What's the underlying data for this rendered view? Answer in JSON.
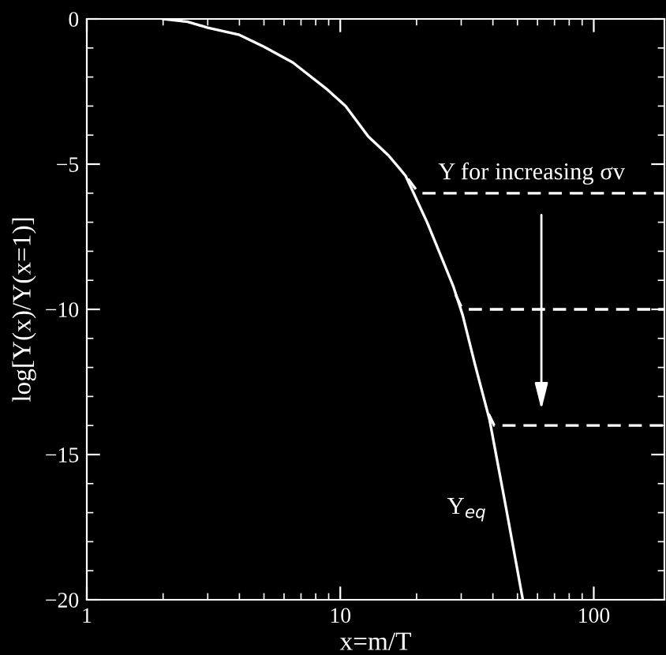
{
  "chart_data": {
    "type": "line",
    "xlabel": "x=m/T",
    "ylabel": "log[Y(x)/Y(x=1)]",
    "log": "x",
    "xlim": [
      1,
      190
    ],
    "ylim": [
      -20,
      0
    ],
    "xticks": [
      1,
      10,
      100
    ],
    "yticks": [
      {
        "value": -20,
        "label": "−20"
      },
      {
        "value": -15,
        "label": "−15"
      },
      {
        "value": -10,
        "label": "−10"
      },
      {
        "value": -5,
        "label": "−5"
      },
      0
    ],
    "grid": false,
    "marker": "none",
    "series": [
      {
        "color": "#ffffff",
        "line_style": "solid",
        "x": [
          2,
          2.5,
          3,
          4,
          5,
          6.5,
          8.8,
          10.5,
          12.9,
          15.5,
          18.1,
          22,
          24,
          27.9,
          30.4,
          34,
          38.8,
          45,
          52.5
        ],
        "values": [
          0,
          -0.1,
          -0.3,
          -0.55,
          -0.96,
          -1.5,
          -2.4,
          -3.0,
          -4.05,
          -4.7,
          -5.4,
          -7.0,
          -7.8,
          -9.2,
          -10.2,
          -11.9,
          -13.8,
          -16.8,
          -20
        ]
      },
      {
        "color": "#ffffff",
        "line_style": "dashed",
        "x": [
          18.5,
          20,
          21,
          190
        ],
        "values": [
          -5.5,
          -5.9,
          -6.0,
          -6.0
        ]
      },
      {
        "color": "#ffffff",
        "line_style": "dashed",
        "x": [
          28.5,
          30,
          32,
          190
        ],
        "values": [
          -9.5,
          -9.9,
          -10,
          -10
        ]
      },
      {
        "color": "#ffffff",
        "line_style": "dashed",
        "x": [
          38.5,
          40.5,
          190
        ],
        "values": [
          -13.6,
          -14,
          -14
        ]
      }
    ],
    "annotations": [
      "Y for increasing σv",
      "Y$_{eq}$"
    ]
  }
}
